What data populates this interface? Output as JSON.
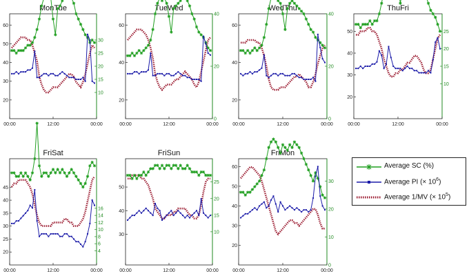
{
  "chart_data": [
    {
      "type": "line",
      "title": "MonTue",
      "x_ticks": [
        "00:00",
        "12:00",
        "00:00"
      ],
      "left_axis": {
        "ticks": [
          20,
          30,
          40,
          50,
          60
        ],
        "range": [
          10,
          66
        ]
      },
      "right_axis": {
        "ticks": [
          10,
          15,
          20,
          25,
          30
        ],
        "range": [
          0,
          40
        ]
      },
      "series": {
        "sc": [
          26,
          26,
          25,
          26,
          26,
          26,
          27,
          28,
          28,
          29,
          31,
          34,
          38,
          43,
          46,
          47,
          46,
          46,
          38,
          32,
          42,
          43,
          45,
          46,
          47,
          48,
          46,
          44,
          40,
          38,
          36,
          34,
          32,
          31,
          29,
          30,
          29
        ],
        "pi": [
          34,
          34,
          35,
          34,
          35,
          35,
          35,
          36,
          36,
          37,
          46,
          32,
          32,
          33,
          34,
          34,
          33,
          34,
          34,
          33,
          33,
          34,
          35,
          34,
          33,
          32,
          32,
          32,
          31,
          31,
          31,
          32,
          30,
          55,
          52,
          30,
          29
        ],
        "mv": [
          27,
          28,
          29,
          30,
          31,
          31,
          31,
          30,
          30,
          28,
          25,
          22,
          16,
          13,
          11,
          10,
          10,
          11,
          12,
          12,
          12,
          13,
          14,
          15,
          16,
          17,
          17,
          16,
          14,
          13,
          12,
          14,
          17,
          21,
          25,
          28,
          27
        ]
      }
    },
    {
      "type": "line",
      "title": "TueWed",
      "x_ticks": [
        "00:00",
        "12:00",
        "00:00"
      ],
      "left_axis": {
        "ticks": [
          20,
          40,
          60
        ],
        "range": [
          10,
          66
        ]
      },
      "right_axis": {
        "ticks": [
          0,
          20,
          40
        ],
        "range": [
          0,
          40
        ]
      },
      "series": {
        "sc": [
          24,
          24,
          25,
          24,
          25,
          26,
          25,
          26,
          27,
          28,
          30,
          34,
          40,
          44,
          46,
          45,
          46,
          44,
          39,
          33,
          42,
          43,
          44,
          45,
          46,
          46,
          45,
          43,
          40,
          38,
          35,
          33,
          32,
          31,
          29,
          27,
          26
        ],
        "pi": [
          34,
          34,
          34,
          35,
          35,
          34,
          35,
          35,
          35,
          36,
          45,
          33,
          33,
          34,
          34,
          34,
          33,
          34,
          34,
          33,
          33,
          34,
          35,
          34,
          33,
          33,
          32,
          32,
          31,
          31,
          31,
          31,
          30,
          54,
          50,
          45,
          44
        ],
        "mv": [
          30,
          31,
          32,
          33,
          34,
          34,
          34,
          33,
          32,
          30,
          27,
          23,
          17,
          14,
          12,
          11,
          12,
          13,
          13,
          13,
          14,
          15,
          15,
          16,
          17,
          18,
          17,
          16,
          15,
          13,
          12,
          14,
          18,
          22,
          26,
          30,
          31
        ]
      }
    },
    {
      "type": "line",
      "title": "WedThu",
      "x_ticks": [
        "00:00",
        "12:00",
        "00:00"
      ],
      "left_axis": {
        "ticks": [
          20,
          40,
          60
        ],
        "range": [
          10,
          66
        ]
      },
      "right_axis": {
        "ticks": [
          0,
          20,
          40
        ],
        "range": [
          0,
          40
        ]
      },
      "series": {
        "sc": [
          26,
          26,
          25,
          26,
          25,
          26,
          27,
          26,
          27,
          28,
          31,
          36,
          42,
          46,
          47,
          46,
          45,
          44,
          40,
          34,
          42,
          44,
          45,
          44,
          43,
          42,
          41,
          40,
          38,
          36,
          34,
          33,
          31,
          30,
          29,
          28,
          27
        ],
        "pi": [
          34,
          33,
          34,
          34,
          35,
          34,
          35,
          35,
          36,
          37,
          44,
          33,
          32,
          33,
          34,
          34,
          33,
          34,
          34,
          33,
          33,
          33,
          34,
          34,
          33,
          32,
          32,
          31,
          31,
          31,
          31,
          32,
          30,
          55,
          48,
          42,
          40
        ],
        "mv": [
          29,
          29,
          29,
          30,
          30,
          30,
          30,
          29,
          29,
          27,
          24,
          20,
          15,
          12,
          11,
          11,
          11,
          12,
          12,
          12,
          13,
          14,
          15,
          16,
          16,
          17,
          16,
          15,
          14,
          12,
          12,
          14,
          17,
          21,
          24,
          27,
          28
        ]
      }
    },
    {
      "type": "line",
      "title": "ThuFri",
      "x_ticks": [
        "00:00",
        "12:00",
        "00:00"
      ],
      "left_axis": {
        "ticks": [
          20,
          30,
          40,
          50
        ],
        "range": [
          10,
          58
        ]
      },
      "right_axis": {
        "ticks": [
          10,
          15,
          20,
          25
        ],
        "range": [
          0,
          30
        ]
      },
      "series": {
        "sc": [
          27,
          27,
          26,
          27,
          27,
          27,
          28,
          27,
          28,
          28,
          30,
          33,
          37,
          40,
          41,
          40,
          41,
          40,
          38,
          33,
          37,
          38,
          39,
          40,
          41,
          42,
          41,
          40,
          39,
          37,
          35,
          33,
          31,
          30,
          29,
          27,
          25
        ],
        "pi": [
          33,
          33,
          34,
          33,
          34,
          34,
          34,
          35,
          35,
          36,
          41,
          39,
          33,
          35,
          43,
          38,
          34,
          33,
          33,
          33,
          32,
          33,
          34,
          33,
          33,
          32,
          32,
          31,
          31,
          31,
          31,
          32,
          31,
          37,
          45,
          47,
          42
        ],
        "mv": [
          24,
          24,
          25,
          25,
          25,
          26,
          26,
          25,
          25,
          24,
          22,
          20,
          17,
          15,
          13,
          12,
          12,
          13,
          13,
          14,
          14,
          15,
          16,
          16,
          17,
          18,
          18,
          17,
          16,
          14,
          13,
          13,
          14,
          17,
          20,
          23,
          24
        ]
      }
    },
    {
      "type": "line",
      "title": "FriSat",
      "x_ticks": [
        "00:00",
        "12:00",
        "00:00"
      ],
      "left_axis": {
        "ticks": [
          20,
          25,
          30,
          35,
          40,
          45
        ],
        "range": [
          15,
          56
        ]
      },
      "right_axis": {
        "ticks": [
          4,
          6,
          8,
          10,
          12,
          14,
          16
        ],
        "range": [
          0,
          30
        ]
      },
      "series": {
        "sc": [
          26,
          26,
          25,
          25,
          26,
          25,
          26,
          25,
          24,
          26,
          30,
          40,
          28,
          25,
          26,
          26,
          25,
          26,
          27,
          26,
          27,
          26,
          27,
          26,
          25,
          26,
          27,
          26,
          25,
          24,
          23,
          22,
          23,
          25,
          28,
          29,
          28
        ],
        "pi": [
          31,
          31,
          32,
          32,
          33,
          34,
          35,
          36,
          38,
          37,
          44,
          32,
          26,
          27,
          27,
          27,
          26,
          27,
          27,
          27,
          27,
          26,
          26,
          27,
          27,
          26,
          26,
          25,
          24,
          24,
          23,
          22,
          24,
          27,
          31,
          40,
          38
        ],
        "mv": [
          22,
          23,
          23,
          24,
          24,
          24,
          24,
          23,
          22,
          20,
          17,
          14,
          12,
          11,
          11,
          11,
          11,
          11,
          12,
          12,
          12,
          12,
          12,
          13,
          13,
          12,
          12,
          11,
          11,
          11,
          12,
          13,
          15,
          18,
          21,
          24,
          25
        ]
      }
    },
    {
      "type": "line",
      "title": "FriSun",
      "x_ticks": [
        "00:00",
        "12:00",
        "00:00"
      ],
      "left_axis": {
        "ticks": [
          30,
          40,
          50
        ],
        "range": [
          17,
          62
        ]
      },
      "right_axis": {
        "ticks": [
          10,
          15,
          20,
          25
        ],
        "range": [
          0,
          32
        ]
      },
      "series": {
        "sc": [
          27,
          27,
          26,
          27,
          26,
          27,
          27,
          28,
          27,
          28,
          29,
          29,
          30,
          30,
          29,
          30,
          29,
          30,
          30,
          29,
          30,
          30,
          29,
          30,
          29,
          29,
          30,
          29,
          28,
          28,
          28,
          27,
          28,
          28,
          27,
          27,
          27
        ],
        "pi": [
          36,
          37,
          38,
          38,
          39,
          40,
          39,
          40,
          41,
          40,
          39,
          38,
          43,
          41,
          40,
          36,
          37,
          38,
          39,
          40,
          38,
          39,
          40,
          39,
          38,
          37,
          38,
          37,
          38,
          39,
          40,
          38,
          45,
          39,
          38,
          37,
          38
        ],
        "mv": [
          26,
          26,
          27,
          27,
          27,
          27,
          26,
          26,
          25,
          24,
          22,
          20,
          17,
          16,
          15,
          14,
          14,
          15,
          15,
          15,
          16,
          16,
          17,
          17,
          17,
          17,
          16,
          15,
          15,
          14,
          14,
          15,
          18,
          22,
          25,
          26,
          26
        ]
      }
    },
    {
      "type": "line",
      "title": "FriMon",
      "x_ticks": [
        "00:00",
        "12:00",
        "00:00"
      ],
      "left_axis": {
        "ticks": [
          20,
          30,
          40,
          50,
          60
        ],
        "range": [
          10,
          64
        ]
      },
      "right_axis": {
        "ticks": [
          0,
          10,
          20,
          30
        ],
        "range": [
          0,
          38
        ]
      },
      "series": {
        "sc": [
          26,
          26,
          25,
          26,
          26,
          27,
          28,
          29,
          30,
          32,
          34,
          38,
          42,
          44,
          45,
          44,
          42,
          40,
          43,
          42,
          41,
          43,
          42,
          44,
          43,
          42,
          40,
          38,
          36,
          34,
          32,
          30,
          33,
          31,
          28,
          25,
          24
        ],
        "pi": [
          34,
          35,
          36,
          36,
          37,
          38,
          39,
          38,
          40,
          41,
          42,
          39,
          40,
          43,
          45,
          41,
          37,
          42,
          40,
          38,
          39,
          40,
          39,
          38,
          39,
          38,
          37,
          38,
          38,
          37,
          38,
          44,
          55,
          60,
          45,
          40,
          38
        ],
        "mv": [
          31,
          32,
          33,
          34,
          35,
          35,
          34,
          33,
          32,
          30,
          27,
          24,
          21,
          18,
          15,
          12,
          11,
          12,
          13,
          14,
          15,
          16,
          16,
          15,
          15,
          14,
          15,
          16,
          17,
          18,
          19,
          20,
          20,
          18,
          15,
          13,
          13
        ]
      }
    }
  ],
  "legend": {
    "items": [
      {
        "label": "Average SC (%)",
        "key": "sc"
      },
      {
        "label": "Average PI (× 10",
        "sup": "6",
        "tail": ")",
        "key": "pi"
      },
      {
        "label": "Average 1/MV (× 10",
        "sup": "5",
        "tail": ")",
        "key": "mv"
      }
    ]
  },
  "colors": {
    "sc": "#1f9e1f",
    "pi": "#1a1aa8",
    "mv": "#9b1b30",
    "axis": "#222222",
    "right_axis": "#1f8a1f"
  }
}
